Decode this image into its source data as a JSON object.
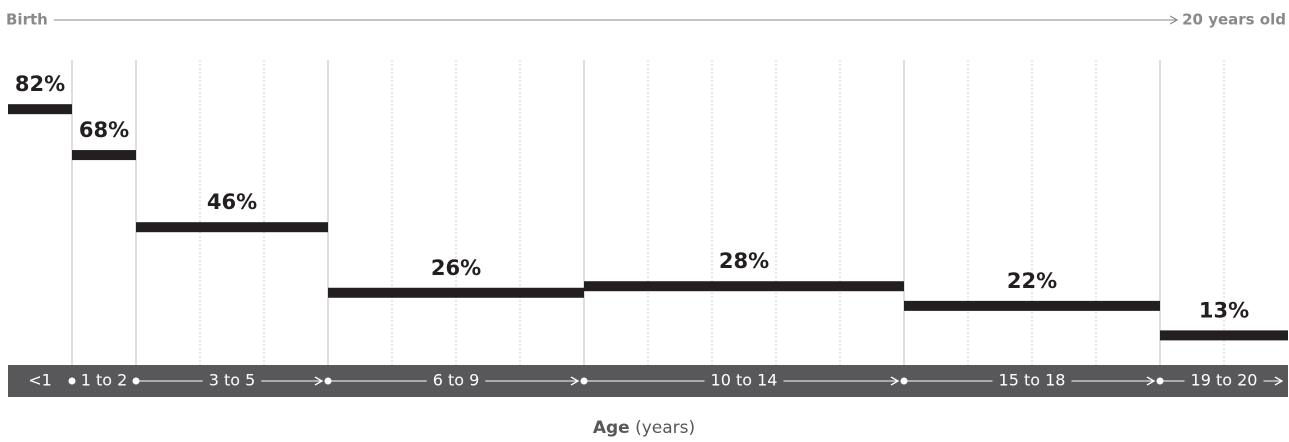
{
  "chart_data": {
    "type": "step-bar",
    "start_label": "Birth",
    "end_label": "20 years old",
    "x_label": "Age",
    "x_label_unit": "(years)",
    "categories": [
      "<1",
      "1 to 2",
      "3 to 5",
      "6 to 9",
      "10 to 14",
      "15 to 18",
      "19 to 20"
    ],
    "bins": [
      0,
      1,
      2,
      5,
      9,
      14,
      18,
      20
    ],
    "values": [
      82,
      68,
      46,
      26,
      28,
      22,
      13
    ],
    "value_labels": [
      "82%",
      "68%",
      "46%",
      "26%",
      "28%",
      "22%",
      "13%"
    ],
    "xlim": [
      0,
      20
    ],
    "ylim": [
      0,
      97
    ],
    "color": "#231f20",
    "band_color": "#58585a"
  }
}
